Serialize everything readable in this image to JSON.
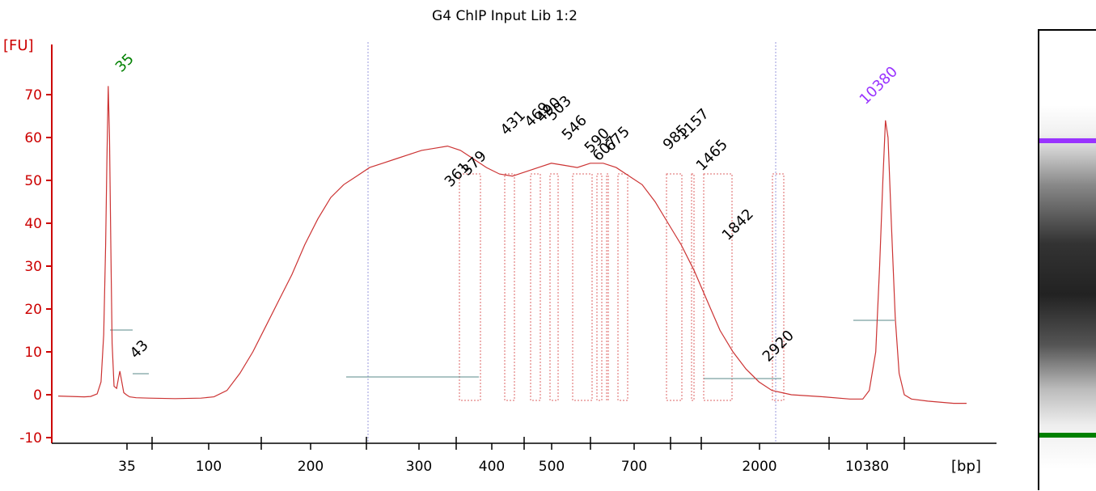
{
  "chart_data": {
    "type": "line",
    "title": "G4 ChIP Input Lib 1:2",
    "ylabel": "[FU]",
    "xlabel": "[bp]",
    "ylim": [
      -10,
      80
    ],
    "y_ticks": [
      -10,
      0,
      10,
      20,
      30,
      40,
      50,
      60,
      70
    ],
    "x_ticks": [
      "35",
      "100",
      "200",
      "300",
      "400",
      "500",
      "700",
      "2000",
      "10380"
    ],
    "peak_labels": [
      {
        "label": "35",
        "color": "#008000",
        "marker": true
      },
      {
        "label": "43",
        "color": "#000000"
      },
      {
        "label": "361",
        "color": "#000000"
      },
      {
        "label": "379",
        "color": "#000000"
      },
      {
        "label": "431",
        "color": "#000000"
      },
      {
        "label": "469",
        "color": "#000000"
      },
      {
        "label": "490",
        "color": "#000000"
      },
      {
        "label": "503",
        "color": "#000000"
      },
      {
        "label": "546",
        "color": "#000000"
      },
      {
        "label": "590",
        "color": "#000000"
      },
      {
        "label": "607",
        "color": "#000000"
      },
      {
        "label": "675",
        "color": "#000000"
      },
      {
        "label": "985",
        "color": "#000000"
      },
      {
        "label": "1157",
        "color": "#000000"
      },
      {
        "label": "1465",
        "color": "#000000"
      },
      {
        "label": "1842",
        "color": "#000000"
      },
      {
        "label": "2920",
        "color": "#000000"
      },
      {
        "label": "10380",
        "color": "#9933ff",
        "marker": true
      }
    ],
    "series": [
      {
        "points": [
          [
            0,
            -0.3
          ],
          [
            2,
            -0.4
          ],
          [
            4,
            -0.5
          ],
          [
            5,
            -0.4
          ],
          [
            6,
            0.2
          ],
          [
            6.6,
            3
          ],
          [
            7,
            14
          ],
          [
            7.3,
            35
          ],
          [
            7.5,
            55
          ],
          [
            7.7,
            72
          ],
          [
            7.9,
            60
          ],
          [
            8.1,
            35
          ],
          [
            8.3,
            12
          ],
          [
            8.6,
            2
          ],
          [
            9.0,
            1.5
          ],
          [
            9.3,
            4
          ],
          [
            9.5,
            5.5
          ],
          [
            9.8,
            3
          ],
          [
            10.1,
            0.5
          ],
          [
            10.5,
            0
          ],
          [
            11,
            -0.5
          ],
          [
            12,
            -0.7
          ],
          [
            14,
            -0.8
          ],
          [
            18,
            -0.9
          ],
          [
            22,
            -0.8
          ],
          [
            24,
            -0.5
          ],
          [
            26,
            1
          ],
          [
            28,
            5
          ],
          [
            30,
            10
          ],
          [
            32,
            16
          ],
          [
            34,
            22
          ],
          [
            36,
            28
          ],
          [
            38,
            35
          ],
          [
            40,
            41
          ],
          [
            42,
            46
          ],
          [
            44,
            49
          ],
          [
            46,
            51
          ],
          [
            48,
            53
          ],
          [
            50,
            54
          ],
          [
            52,
            55
          ],
          [
            54,
            56
          ],
          [
            56,
            57
          ],
          [
            58,
            57.5
          ],
          [
            60,
            58
          ],
          [
            62,
            57
          ],
          [
            64,
            55
          ],
          [
            66,
            53
          ],
          [
            68,
            51.5
          ],
          [
            70,
            51
          ],
          [
            72,
            52
          ],
          [
            74,
            53
          ],
          [
            76,
            54
          ],
          [
            78,
            53.5
          ],
          [
            80,
            53
          ],
          [
            82,
            54
          ],
          [
            84,
            54
          ],
          [
            86,
            53
          ],
          [
            88,
            51
          ],
          [
            90,
            49
          ],
          [
            92,
            45
          ],
          [
            94,
            40
          ],
          [
            96,
            35
          ],
          [
            98,
            29
          ],
          [
            100,
            22
          ],
          [
            102,
            15
          ],
          [
            104,
            10
          ],
          [
            106,
            6
          ],
          [
            108,
            3
          ],
          [
            110,
            1
          ],
          [
            113,
            0
          ],
          [
            118,
            -0.5
          ],
          [
            122,
            -1
          ],
          [
            124,
            -1
          ],
          [
            125,
            1
          ],
          [
            126,
            10
          ],
          [
            126.6,
            30
          ],
          [
            127.1,
            50
          ],
          [
            127.5,
            64
          ],
          [
            127.9,
            60
          ],
          [
            128.4,
            40
          ],
          [
            129,
            18
          ],
          [
            129.6,
            5
          ],
          [
            130.4,
            0
          ],
          [
            131.5,
            -1
          ],
          [
            134,
            -1.5
          ],
          [
            138,
            -2
          ],
          [
            140,
            -2
          ]
        ]
      }
    ]
  }
}
